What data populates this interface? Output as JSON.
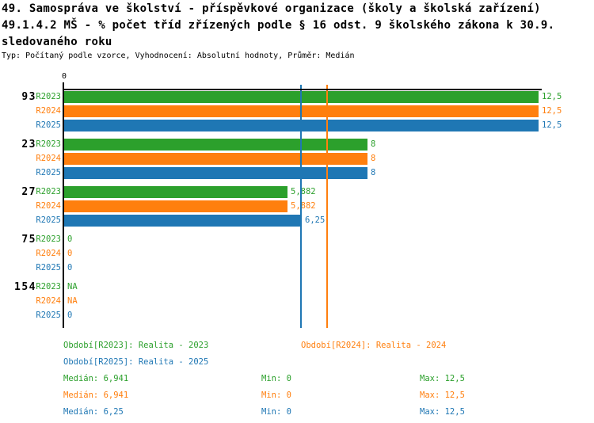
{
  "title": {
    "line1": "49. Samospráva ve školství - příspěvkové organizace (školy a školská zařízení)",
    "line2": "49.1.4.2 MŠ - % počet tříd zřízených podle § 16 odst. 9 školského zákona k 30.9.",
    "line3": "sledovaného roku",
    "subtitle": "Typ: Počítaný podle vzorce, Vyhodnocení: Absolutní hodnoty, Průměr: Medián"
  },
  "colors": {
    "green": "#2ca02c",
    "orange": "#ff7f0e",
    "blue": "#1f77b4",
    "axis": "#000000"
  },
  "chart_data": {
    "type": "bar",
    "orientation": "horizontal",
    "categories": [
      "93",
      "23",
      "27",
      "75",
      "154"
    ],
    "series": [
      {
        "name": "R2023",
        "color": "#2ca02c",
        "values": [
          12.5,
          8,
          5.882,
          0,
          null
        ],
        "labels": [
          "12,5",
          "8",
          "5,882",
          "0",
          "NA"
        ],
        "median": 6.941
      },
      {
        "name": "R2024",
        "color": "#ff7f0e",
        "values": [
          12.5,
          8,
          5.882,
          0,
          null
        ],
        "labels": [
          "12,5",
          "8",
          "5,882",
          "0",
          "NA"
        ],
        "median": 6.941
      },
      {
        "name": "R2025",
        "color": "#1f77b4",
        "values": [
          12.5,
          8,
          6.25,
          0,
          0
        ],
        "labels": [
          "12,5",
          "8",
          "6,25",
          "0",
          "0"
        ],
        "median": 6.25
      }
    ],
    "xlim": [
      0,
      12.5
    ],
    "x_tick_labels": [
      "0"
    ],
    "grid": false,
    "median_lines": [
      {
        "value": 6.941,
        "color": "#ff7f0e"
      },
      {
        "value": 6.25,
        "color": "#1f77b4"
      }
    ]
  },
  "legend": {
    "periods": [
      {
        "label": "Období[R2023]: Realita - 2023",
        "color": "#2ca02c"
      },
      {
        "label": "Období[R2024]: Realita - 2024",
        "color": "#ff7f0e"
      },
      {
        "label": "Období[R2025]: Realita - 2025",
        "color": "#1f77b4"
      }
    ],
    "stats": [
      {
        "median": "Medián: 6,941",
        "min": "Min: 0",
        "max": "Max: 12,5",
        "color": "#2ca02c"
      },
      {
        "median": "Medián: 6,941",
        "min": "Min: 0",
        "max": "Max: 12,5",
        "color": "#ff7f0e"
      },
      {
        "median": "Medián: 6,25",
        "min": "Min: 0",
        "max": "Max: 12,5",
        "color": "#1f77b4"
      }
    ]
  }
}
